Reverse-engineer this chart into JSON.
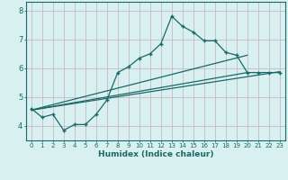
{
  "xlabel": "Humidex (Indice chaleur)",
  "bg_color": "#d8f0f0",
  "grid_color": "#c8b8c8",
  "line_color": "#1a6868",
  "xlim": [
    -0.5,
    23.5
  ],
  "ylim": [
    3.5,
    8.3
  ],
  "xticks": [
    0,
    1,
    2,
    3,
    4,
    5,
    6,
    7,
    8,
    9,
    10,
    11,
    12,
    13,
    14,
    15,
    16,
    17,
    18,
    19,
    20,
    21,
    22,
    23
  ],
  "yticks": [
    4,
    5,
    6,
    7,
    8
  ],
  "jagged_x": [
    0,
    1,
    2,
    3,
    4,
    5,
    6,
    7,
    8,
    9,
    10,
    11,
    12,
    13,
    14,
    15,
    16,
    17,
    18,
    19,
    20,
    21,
    22,
    23
  ],
  "jagged_y": [
    4.6,
    4.3,
    4.4,
    3.85,
    4.05,
    4.05,
    4.4,
    4.9,
    5.85,
    6.05,
    6.35,
    6.5,
    6.85,
    7.8,
    7.45,
    7.25,
    6.95,
    6.95,
    6.55,
    6.45,
    5.85,
    5.85,
    5.85,
    5.85
  ],
  "line1_x": [
    0,
    20
  ],
  "line1_y": [
    4.55,
    6.45
  ],
  "line2_x": [
    0,
    20
  ],
  "line2_y": [
    4.55,
    5.85
  ],
  "line3_x": [
    0,
    23
  ],
  "line3_y": [
    4.55,
    5.88
  ]
}
